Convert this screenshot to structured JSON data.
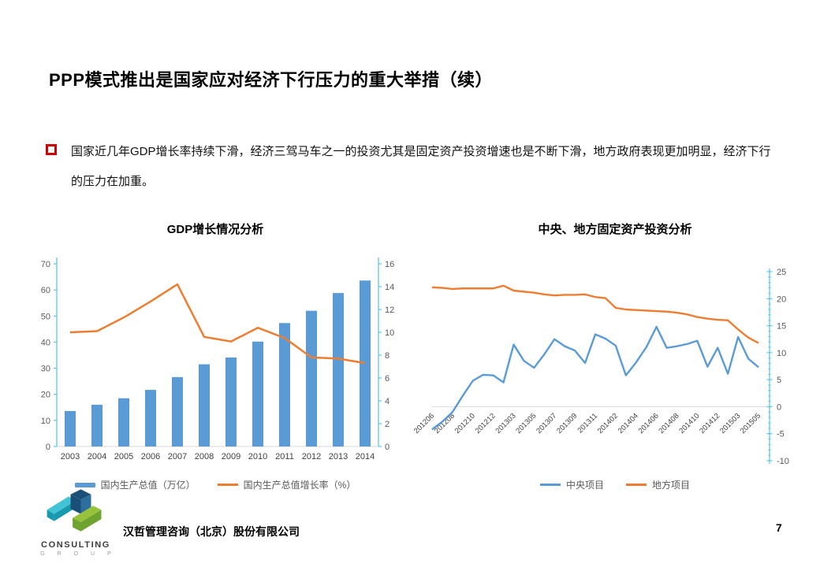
{
  "slide": {
    "title": "PPP模式推出是国家应对经济下行压力的重大举措（续）",
    "bullet_text": "国家近几年GDP增长率持续下滑，经济三驾马车之一的投资尤其是固定资产投资增速也是不断下滑，地方政府表现更加明显，经济下行的压力在加重。",
    "footer_company": "汉哲管理咨询（北京）股份有限公司",
    "page_number": "7",
    "logo": {
      "line1": "CONSULTING",
      "line2": "G R O U P"
    }
  },
  "colors": {
    "bar_blue": "#5B9BD5",
    "line_orange": "#ED7D31",
    "axis_cyan": "#5BC6E8",
    "tick_gray": "#595959",
    "label_gray": "#404040",
    "grid_gray": "#D9D9D9",
    "bullet_red": "#CE0000",
    "logo_teal_light": "#43C3D6",
    "logo_teal": "#189AAE",
    "logo_navy": "#1A4F77",
    "logo_blue": "#2C6E9E",
    "logo_green": "#97C23C",
    "logo_green_dark": "#6FA32F"
  },
  "chart_data": [
    {
      "type": "bar",
      "title": "GDP增长情况分析",
      "categories": [
        "2003",
        "2004",
        "2005",
        "2006",
        "2007",
        "2008",
        "2009",
        "2010",
        "2011",
        "2012",
        "2013",
        "2014"
      ],
      "series": [
        {
          "name": "国内生产总值（万亿）",
          "type": "bar",
          "axis": "left",
          "color": "#5B9BD5",
          "values": [
            13.6,
            16.0,
            18.5,
            21.7,
            26.6,
            31.5,
            34.1,
            40.2,
            47.3,
            52.0,
            58.8,
            63.6
          ]
        },
        {
          "name": "国内生产总值增长率（%）",
          "type": "line",
          "axis": "right",
          "color": "#ED7D31",
          "values": [
            10.0,
            10.1,
            11.3,
            12.7,
            14.2,
            9.6,
            9.2,
            10.4,
            9.5,
            7.8,
            7.7,
            7.3
          ]
        }
      ],
      "left_axis": {
        "min": 0,
        "max": 70,
        "step": 10
      },
      "right_axis": {
        "min": 0,
        "max": 16,
        "step": 2
      },
      "grid": false,
      "legend_position": "bottom"
    },
    {
      "type": "line",
      "title": "中央、地方固定资产投资分析",
      "categories": [
        "201206",
        "201207",
        "201208",
        "201209",
        "201210",
        "201211",
        "201212",
        "201302",
        "201303",
        "201304",
        "201305",
        "201306",
        "201307",
        "201308",
        "201309",
        "201310",
        "201311",
        "201312",
        "201402",
        "201403",
        "201404",
        "201405",
        "201406",
        "201407",
        "201408",
        "201409",
        "201410",
        "201411",
        "201412",
        "201502",
        "201503",
        "201504",
        "201505"
      ],
      "label_every": 2,
      "series": [
        {
          "name": "中央项目",
          "type": "line",
          "color": "#5B9BD5",
          "values": [
            -4.2,
            -2.8,
            -1.0,
            2.0,
            4.8,
            5.9,
            5.8,
            4.5,
            11.5,
            8.5,
            7.2,
            9.7,
            12.5,
            11.2,
            10.4,
            8.1,
            13.4,
            12.6,
            11.3,
            5.8,
            8.2,
            11.0,
            14.8,
            10.9,
            11.2,
            11.6,
            12.2,
            7.4,
            10.9,
            6.1,
            12.9,
            8.9,
            7.3
          ]
        },
        {
          "name": "地方项目",
          "type": "line",
          "color": "#ED7D31",
          "values": [
            22.1,
            22.0,
            21.8,
            21.9,
            21.9,
            21.9,
            21.9,
            22.4,
            21.5,
            21.3,
            21.1,
            20.8,
            20.6,
            20.7,
            20.7,
            20.8,
            20.3,
            20.1,
            18.3,
            18.0,
            17.9,
            17.8,
            17.7,
            17.6,
            17.4,
            17.1,
            16.6,
            16.3,
            16.1,
            16.0,
            14.3,
            12.8,
            11.8
          ]
        }
      ],
      "right_axis": {
        "min": -10,
        "max": 25,
        "step": 5
      },
      "grid": false,
      "legend_position": "bottom"
    }
  ]
}
